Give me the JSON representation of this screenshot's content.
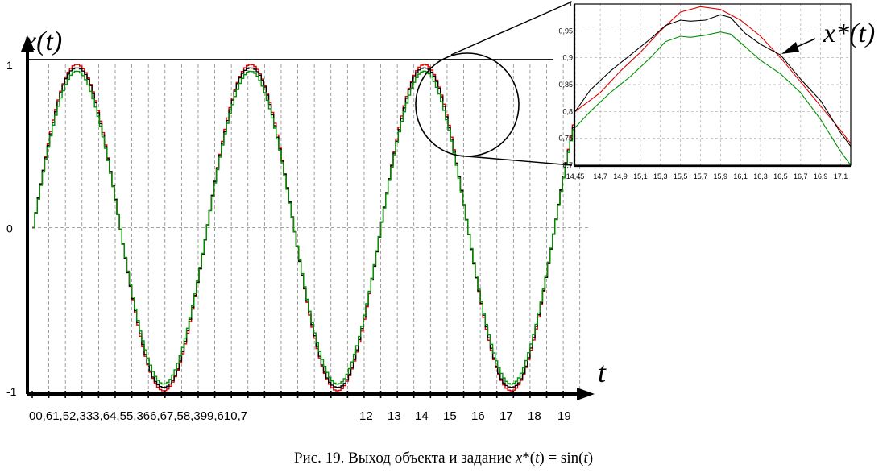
{
  "chart_data": [
    {
      "type": "line",
      "ylabel": "x(t)",
      "xlabel": "t",
      "ylim": [
        -1,
        1
      ],
      "xlim": [
        0,
        20.1
      ],
      "y_ticks": [
        "1",
        "0",
        "-1"
      ],
      "x_tick_labels": [
        "00,61,52,333,64,55,366,67,58,399,610,7",
        "12",
        "13",
        "14",
        "15",
        "16",
        "17",
        "18",
        "19"
      ],
      "grid": true,
      "series": [
        {
          "name": "",
          "color": "#e00000",
          "function": "sin(t)"
        },
        {
          "name": "",
          "color": "#000000",
          "function": "0.985*sin(t) object output"
        },
        {
          "name": "",
          "color": "#009000",
          "function": "0.955*sin(t) object output"
        }
      ]
    },
    {
      "type": "line",
      "annotation": "x*(t)",
      "xlim": [
        14.45,
        17.2
      ],
      "ylim": [
        0.7,
        1.0
      ],
      "y_ticks": [
        "1",
        "0,95",
        "0,9",
        "0,85",
        "0,8",
        "0,75",
        "0,7"
      ],
      "x_ticks": [
        "14,45",
        "14,7",
        "14,9",
        "15,1",
        "15,3",
        "15,5",
        "15,7",
        "15,9",
        "16,1",
        "16,3",
        "16,5",
        "16,7",
        "16,9",
        "17,1"
      ],
      "grid": true,
      "series": [
        {
          "name": "",
          "color": "#e00000",
          "x": [
            14.45,
            14.7,
            14.9,
            15.1,
            15.3,
            15.5,
            15.7,
            15.9,
            16.1,
            16.3,
            16.5,
            16.7,
            16.9,
            17.1,
            17.2
          ],
          "y": [
            0.8,
            0.835,
            0.875,
            0.91,
            0.95,
            0.985,
            0.995,
            0.99,
            0.97,
            0.94,
            0.9,
            0.855,
            0.81,
            0.765,
            0.74
          ]
        },
        {
          "name": "",
          "color": "#000000",
          "x": [
            14.45,
            14.6,
            14.8,
            15.0,
            15.2,
            15.35,
            15.5,
            15.6,
            15.75,
            15.9,
            16.0,
            16.15,
            16.3,
            16.5,
            16.7,
            16.9,
            17.1,
            17.2
          ],
          "y": [
            0.8,
            0.84,
            0.875,
            0.905,
            0.935,
            0.96,
            0.97,
            0.968,
            0.97,
            0.98,
            0.975,
            0.945,
            0.925,
            0.905,
            0.86,
            0.82,
            0.76,
            0.735
          ]
        },
        {
          "name": "",
          "color": "#009000",
          "x": [
            14.45,
            14.6,
            14.8,
            15.0,
            15.2,
            15.35,
            15.5,
            15.6,
            15.75,
            15.9,
            16.0,
            16.15,
            16.3,
            16.5,
            16.7,
            16.9,
            17.1,
            17.2
          ],
          "y": [
            0.77,
            0.8,
            0.835,
            0.865,
            0.9,
            0.93,
            0.94,
            0.938,
            0.942,
            0.948,
            0.944,
            0.92,
            0.895,
            0.87,
            0.835,
            0.785,
            0.725,
            0.7
          ]
        }
      ]
    }
  ],
  "caption": {
    "prefix": "Рис. 19. Выход объекта и задание ",
    "var": "x",
    "star_open": "*(",
    "t1": "t",
    "mid": ") = sin(",
    "t2": "t",
    "end": ")"
  }
}
